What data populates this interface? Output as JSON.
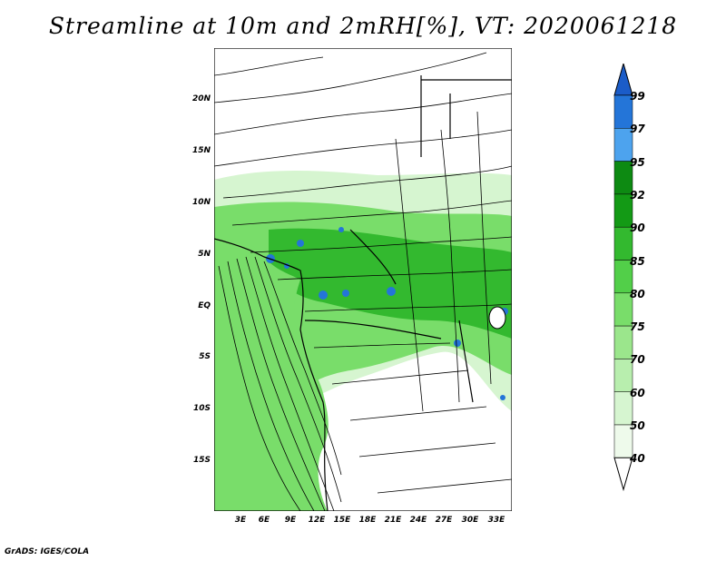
{
  "title": "Streamline at 10m and 2mRH[%], VT: 2020061218",
  "footer": "GrADS: IGES/COLA",
  "lat_labels": [
    "20N",
    "15N",
    "10N",
    "5N",
    "EQ",
    "5S",
    "10S",
    "15S"
  ],
  "lon_labels": [
    "3E",
    "6E",
    "9E",
    "12E",
    "15E",
    "18E",
    "21E",
    "24E",
    "27E",
    "30E",
    "33E"
  ],
  "colorbar": {
    "levels": [
      "99",
      "97",
      "95",
      "92",
      "90",
      "85",
      "80",
      "75",
      "70",
      "60",
      "50",
      "40"
    ],
    "colors": [
      "#ffffff",
      "#eefaeb",
      "#d6f5d0",
      "#b8eeae",
      "#9be68c",
      "#79dd6a",
      "#52cf49",
      "#33b92f",
      "#139a15",
      "#0d8a12",
      "#4da3ee",
      "#2475d8",
      "#1b5cc8"
    ]
  },
  "colors": {
    "rh_40_50": "#eefaeb",
    "rh_50_60": "#d6f5d0",
    "rh_75_80": "#79dd6a",
    "rh_85_90": "#33b92f",
    "rh_95_97": "#4da3ee",
    "rh_97_99": "#2475d8"
  }
}
